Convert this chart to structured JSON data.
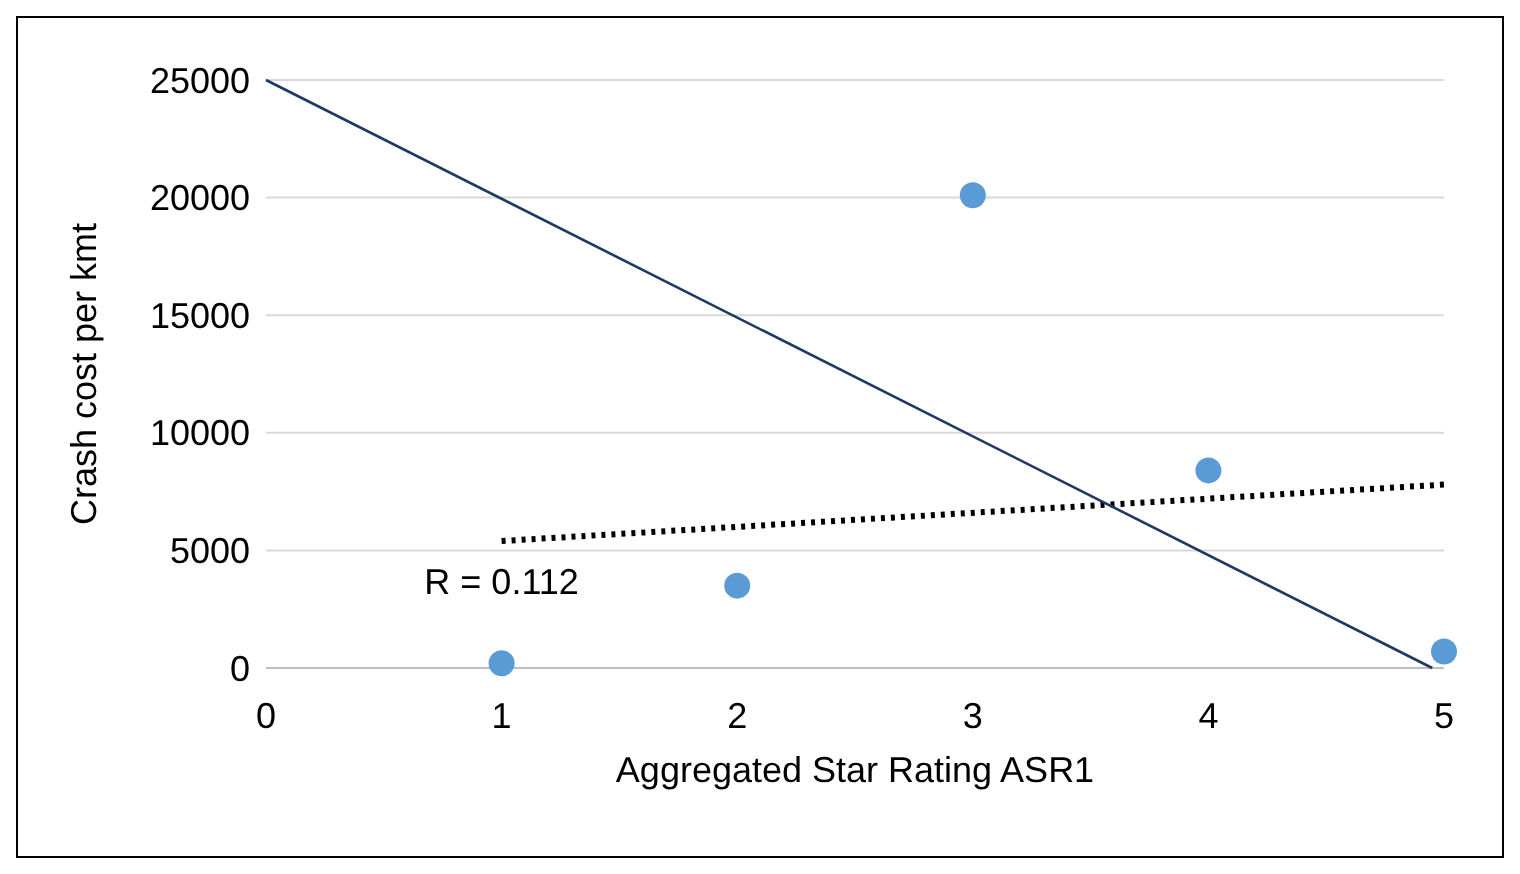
{
  "chart_data": {
    "type": "scatter",
    "xlabel": "Aggregated Star Rating ASR1",
    "ylabel": "Crash cost per kmt",
    "xlim": [
      0,
      5
    ],
    "xticks": [
      0,
      1,
      2,
      3,
      4,
      5
    ],
    "ylim": [
      0,
      25000
    ],
    "yticks": [
      0,
      5000,
      10000,
      15000,
      20000,
      25000
    ],
    "grid": "y",
    "annotations": [
      {
        "text": "R = 0.112",
        "x": 1,
        "y": 5000
      }
    ],
    "series": [
      {
        "color": "#5b9bd5",
        "marker": "circle",
        "x": [
          1,
          2,
          3,
          4,
          5
        ],
        "values": [
          200,
          3500,
          20100,
          8400,
          700
        ]
      },
      {
        "type": "line",
        "color": "#000000",
        "line_style": "dotted",
        "x": [
          1,
          5
        ],
        "values": [
          5400,
          7800
        ]
      },
      {
        "type": "line",
        "color": "#1f3864",
        "line_style": "solid",
        "x": [
          0,
          4.95
        ],
        "values": [
          25000,
          0
        ]
      }
    ]
  }
}
